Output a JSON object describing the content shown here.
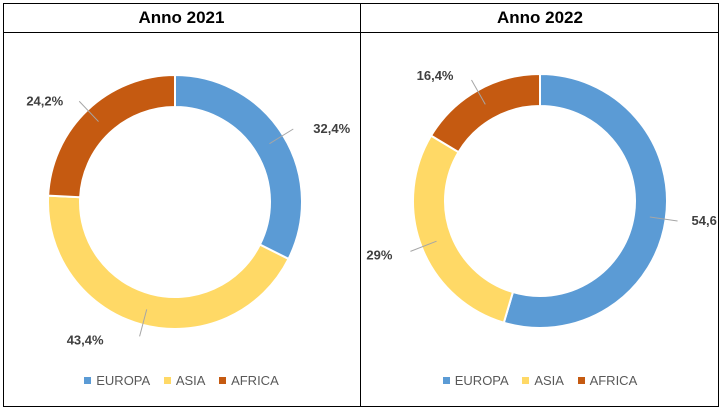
{
  "chart_data": [
    {
      "type": "pie",
      "variant": "doughnut",
      "title": "Anno 2021",
      "categories": [
        "EUROPA",
        "ASIA",
        "AFRICA"
      ],
      "values": [
        32.4,
        43.4,
        24.2
      ],
      "labels": [
        "32,4%",
        "43,4%",
        "24,2%"
      ],
      "colors": [
        "#5B9BD5",
        "#FFD966",
        "#C55A11"
      ],
      "legend": "bottom"
    },
    {
      "type": "pie",
      "variant": "doughnut",
      "title": "Anno 2022",
      "categories": [
        "EUROPA",
        "ASIA",
        "AFRICA"
      ],
      "values": [
        54.6,
        29,
        16.4
      ],
      "labels": [
        "54,6",
        "29%",
        "16,4%"
      ],
      "colors": [
        "#5B9BD5",
        "#FFD966",
        "#C55A11"
      ],
      "legend": "bottom"
    }
  ]
}
